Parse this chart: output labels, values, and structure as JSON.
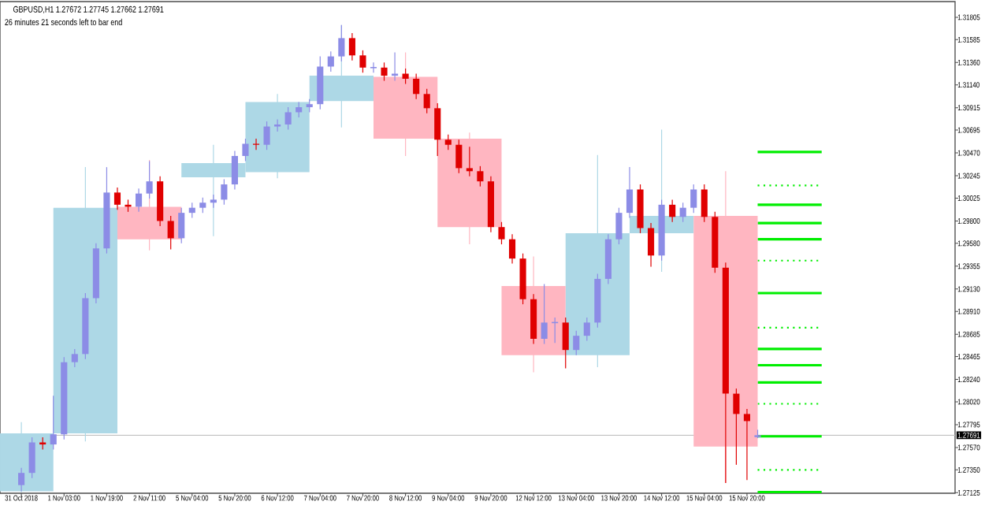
{
  "chart_data": {
    "type": "candlestick",
    "title": "GBPUSD,H1  1.27672 1.27745 1.27662 1.27691",
    "subtitle": "26 minutes 21 seconds left to bar end",
    "categories": [
      "31 Oct 2018",
      null,
      null,
      null,
      "1 Nov 03:00",
      null,
      null,
      null,
      "1 Nov 19:00",
      null,
      null,
      null,
      "2 Nov 11:00",
      null,
      null,
      null,
      "5 Nov 04:00",
      null,
      null,
      null,
      "5 Nov 20:00",
      null,
      null,
      null,
      "6 Nov 12:00",
      null,
      null,
      null,
      "7 Nov 04:00",
      null,
      null,
      null,
      "7 Nov 20:00",
      null,
      null,
      null,
      "8 Nov 12:00",
      null,
      null,
      null,
      "9 Nov 04:00",
      null,
      null,
      null,
      "9 Nov 20:00",
      null,
      null,
      null,
      "12 Nov 12:00",
      null,
      null,
      null,
      "13 Nov 04:00",
      null,
      null,
      null,
      "13 Nov 20:00",
      null,
      null,
      null,
      "14 Nov 12:00",
      null,
      null,
      null,
      "15 Nov 04:00",
      null,
      null,
      null,
      "15 Nov 20:00",
      null,
      null,
      null,
      null,
      null,
      null,
      null,
      null,
      null,
      null,
      null,
      null,
      null,
      null,
      null,
      null,
      null,
      null,
      null
    ],
    "ylim": [
      1.2712,
      1.3196
    ],
    "yticks": [
      1.31805,
      1.31585,
      {
        "value": 1.3136,
        "label": "1.31360"
      },
      {
        "value": 1.3114,
        "label": "1.31140"
      },
      1.30915,
      1.30695,
      {
        "value": 1.3047,
        "label": "1.30470"
      },
      1.30245,
      1.30025,
      {
        "value": 1.298,
        "label": "1.29800"
      },
      {
        "value": 1.2958,
        "label": "1.29580"
      },
      1.29355,
      {
        "value": 1.2913,
        "label": "1.29130"
      },
      {
        "value": 1.2891,
        "label": "1.28910"
      },
      1.28685,
      1.28465,
      {
        "value": 1.2824,
        "label": "1.28240"
      },
      {
        "value": 1.2802,
        "label": "1.28020"
      },
      1.27795,
      {
        "value": 1.2757,
        "label": "1.27570"
      },
      {
        "value": 1.2735,
        "label": "1.27350"
      },
      1.27125
    ],
    "series": [
      {
        "color": "#add8e6",
        "ohlc": [
          [
            1.2714,
            1.2782,
            1.2713,
            1.2771
          ],
          null,
          null,
          null,
          null,
          null,
          [
            1.2771,
            1.3033,
            1.2763,
            1.2993
          ],
          null,
          null,
          null,
          null,
          null,
          null,
          null,
          null,
          null,
          null,
          null,
          [
            1.3023,
            1.3055,
            1.2965,
            1.3037
          ],
          null,
          null,
          null,
          null,
          null,
          [
            1.3028,
            1.3105,
            1.3022,
            1.3097
          ],
          null,
          null,
          null,
          null,
          null,
          [
            1.3098,
            1.3173,
            1.3072,
            1.3123
          ],
          null,
          null,
          null,
          null,
          null,
          null,
          null,
          null,
          null,
          null,
          null,
          null,
          null,
          null,
          null,
          null,
          null,
          null,
          null,
          null,
          null,
          null,
          null,
          [
            1.2848,
            1.3045,
            1.2836,
            1.2968
          ],
          null,
          null,
          null,
          null,
          null,
          [
            1.2968,
            1.307,
            1.293,
            1.2985
          ],
          null,
          null,
          null,
          null,
          null,
          null,
          null,
          null,
          null,
          null,
          null,
          null,
          null,
          null,
          null,
          null,
          null,
          null,
          null,
          null,
          null,
          null,
          null,
          null,
          null,
          null,
          null
        ]
      },
      {
        "color": "#ffb6c1",
        "ohlc": [
          null,
          null,
          null,
          null,
          null,
          null,
          null,
          null,
          null,
          null,
          null,
          null,
          [
            1.2994,
            1.304,
            1.2951,
            1.2962
          ],
          null,
          null,
          null,
          null,
          null,
          null,
          null,
          null,
          null,
          null,
          null,
          null,
          null,
          null,
          null,
          null,
          null,
          null,
          null,
          null,
          null,
          null,
          null,
          [
            1.3122,
            1.3146,
            1.3044,
            1.3061
          ],
          null,
          null,
          null,
          null,
          null,
          [
            1.3061,
            1.3067,
            1.2957,
            1.2974
          ],
          null,
          null,
          null,
          null,
          null,
          [
            1.2916,
            1.2945,
            1.2831,
            1.2848
          ],
          null,
          null,
          null,
          null,
          null,
          null,
          null,
          null,
          null,
          null,
          null,
          null,
          null,
          null,
          null,
          null,
          null,
          [
            1.2985,
            1.3029,
            1.2722,
            1.2758
          ],
          null,
          null,
          null,
          null,
          null,
          null,
          null,
          null,
          null,
          null,
          null,
          null,
          null,
          null,
          null,
          null,
          null,
          null,
          null,
          null,
          null
        ]
      },
      {
        "color": "#8c8ce6",
        "ohlc": [
          [
            1.272,
            1.2737,
            1.2714,
            1.2732
          ],
          [
            1.2732,
            1.2767,
            1.2727,
            1.2762
          ],
          null,
          [
            1.276,
            1.2808,
            1.2755,
            1.277
          ],
          [
            1.277,
            1.2846,
            1.2765,
            1.2841
          ],
          [
            1.2841,
            1.2854,
            1.2836,
            1.2849
          ],
          [
            1.2849,
            1.2909,
            1.2844,
            1.2904
          ],
          [
            1.2904,
            1.2958,
            1.2899,
            1.2953
          ],
          [
            1.2953,
            1.3033,
            1.2948,
            1.3008
          ],
          null,
          null,
          [
            1.2994,
            1.3012,
            1.2989,
            1.3007
          ],
          [
            1.3007,
            1.3039,
            1.3002,
            1.3019
          ],
          null,
          null,
          [
            1.2963,
            1.2993,
            1.2958,
            1.2988
          ],
          [
            1.2988,
            1.2998,
            1.2983,
            1.2993
          ],
          [
            1.2993,
            1.3003,
            1.2988,
            1.2998
          ],
          [
            1.2998,
            1.3006,
            1.2993,
            1.3001
          ],
          [
            1.3001,
            1.3021,
            1.2996,
            1.3016
          ],
          [
            1.3016,
            1.3049,
            1.3011,
            1.3044
          ],
          [
            1.3044,
            1.3061,
            1.3039,
            1.3056
          ],
          null,
          [
            1.3055,
            1.3078,
            1.305,
            1.3073
          ],
          [
            1.3073,
            1.308,
            1.3068,
            1.3075
          ],
          [
            1.3075,
            1.3092,
            1.307,
            1.3087
          ],
          [
            1.3087,
            1.3097,
            1.3082,
            1.3092
          ],
          [
            1.3092,
            1.31,
            1.3087,
            1.3095
          ],
          [
            1.3095,
            1.3142,
            1.309,
            1.3132
          ],
          [
            1.3132,
            1.3147,
            1.3127,
            1.3142
          ],
          [
            1.3142,
            1.3173,
            1.3137,
            1.316
          ],
          null,
          null,
          [
            1.3131,
            1.3136,
            1.3126,
            1.3131
          ],
          null,
          [
            1.3123,
            1.3146,
            1.3118,
            1.3125
          ],
          null,
          null,
          null,
          null,
          null,
          null,
          null,
          null,
          null,
          null,
          null,
          null,
          null,
          [
            1.2864,
            1.2918,
            1.2859,
            1.288
          ],
          [
            1.288,
            1.2885,
            1.286,
            1.288
          ],
          null,
          [
            1.2853,
            1.2872,
            1.2848,
            1.2867
          ],
          [
            1.2867,
            1.2885,
            1.2862,
            1.288
          ],
          [
            1.288,
            1.2928,
            1.2875,
            1.2923
          ],
          [
            1.2923,
            1.2967,
            1.2918,
            1.2962
          ],
          [
            1.2962,
            1.2993,
            1.2957,
            1.2988
          ],
          [
            1.2988,
            1.3033,
            1.2983,
            1.3011
          ],
          null,
          null,
          [
            1.2946,
            1.3001,
            1.2941,
            1.2996
          ],
          null,
          [
            1.2984,
            1.2998,
            1.2979,
            1.2993
          ],
          [
            1.2993,
            1.3016,
            1.2988,
            1.3011
          ],
          null,
          null,
          null,
          null,
          null,
          [
            1.27672,
            1.27745,
            1.27662,
            1.27691
          ],
          null,
          null,
          null,
          null,
          null,
          null,
          null,
          null,
          null,
          null,
          null,
          null,
          null,
          null,
          null,
          null,
          null,
          null
        ]
      },
      {
        "color": "#e00000",
        "ohlc": [
          null,
          null,
          [
            1.2762,
            1.2767,
            1.2755,
            1.276
          ],
          null,
          null,
          null,
          null,
          null,
          null,
          [
            1.3008,
            1.3013,
            1.2991,
            1.2996
          ],
          [
            1.2996,
            1.3001,
            1.2989,
            1.2994
          ],
          null,
          null,
          [
            1.3019,
            1.3024,
            1.2975,
            1.298
          ],
          [
            1.298,
            1.2985,
            1.2952,
            1.2963
          ],
          null,
          null,
          null,
          null,
          null,
          null,
          null,
          [
            1.3056,
            1.3061,
            1.305,
            1.3055
          ],
          null,
          null,
          null,
          null,
          null,
          null,
          null,
          null,
          [
            1.316,
            1.3165,
            1.3138,
            1.3143
          ],
          [
            1.3143,
            1.3148,
            1.3126,
            1.3131
          ],
          null,
          [
            1.3131,
            1.3136,
            1.3118,
            1.3123
          ],
          null,
          [
            1.3125,
            1.313,
            1.3115,
            1.312
          ],
          [
            1.312,
            1.3125,
            1.31,
            1.3105
          ],
          [
            1.3105,
            1.311,
            1.3086,
            1.3091
          ],
          [
            1.3091,
            1.3096,
            1.3044,
            1.306
          ],
          [
            1.306,
            1.3065,
            1.305,
            1.3055
          ],
          [
            1.3055,
            1.306,
            1.3027,
            1.3032
          ],
          [
            1.3032,
            1.3053,
            1.3024,
            1.3029
          ],
          [
            1.3029,
            1.3034,
            1.3014,
            1.3019
          ],
          [
            1.3019,
            1.3024,
            1.2969,
            1.2974
          ],
          [
            1.2974,
            1.2979,
            1.2957,
            1.2962
          ],
          [
            1.2962,
            1.2967,
            1.2938,
            1.2943
          ],
          [
            1.2943,
            1.2948,
            1.2898,
            1.2903
          ],
          [
            1.2903,
            1.2908,
            1.2859,
            1.2864
          ],
          null,
          null,
          [
            1.288,
            1.2885,
            1.2835,
            1.2853
          ],
          null,
          null,
          null,
          null,
          null,
          null,
          [
            1.3011,
            1.3016,
            1.2968,
            1.2973
          ],
          [
            1.2973,
            1.2978,
            1.2935,
            1.2946
          ],
          null,
          [
            1.2996,
            1.3001,
            1.2979,
            1.2984
          ],
          null,
          null,
          [
            1.3011,
            1.3016,
            1.2979,
            1.2984
          ],
          [
            1.2984,
            1.2989,
            1.2929,
            1.2934
          ],
          [
            1.2934,
            1.2939,
            1.2722,
            1.281
          ],
          [
            1.281,
            1.2815,
            1.274,
            1.279
          ],
          [
            1.279,
            1.2795,
            1.2725,
            1.2783
          ],
          null,
          null,
          null,
          null,
          null,
          null,
          null,
          null,
          null,
          null,
          null,
          null,
          null,
          null,
          null,
          null,
          null,
          null,
          null
        ]
      },
      {
        "type": "line",
        "color": "#00ee00",
        "line_style": "solid",
        "values": [
          null,
          null,
          null,
          null,
          null,
          null,
          null,
          null,
          null,
          null,
          null,
          null,
          null,
          null,
          null,
          null,
          null,
          null,
          null,
          null,
          null,
          null,
          null,
          null,
          null,
          null,
          null,
          null,
          null,
          null,
          null,
          null,
          null,
          null,
          null,
          null,
          null,
          null,
          null,
          null,
          null,
          null,
          null,
          null,
          null,
          null,
          null,
          null,
          null,
          null,
          null,
          null,
          null,
          null,
          null,
          null,
          null,
          null,
          null,
          null,
          null,
          null,
          null,
          null,
          null,
          null,
          null,
          null,
          null,
          1.3048,
          1.3048,
          1.3048,
          1.3048,
          1.3048,
          1.3048,
          1.3048,
          null,
          null,
          null,
          null,
          null,
          null,
          null,
          null,
          null,
          null,
          null,
          null
        ]
      },
      {
        "type": "line",
        "color": "#00ee00",
        "line_style": "dotted",
        "values": [
          null,
          null,
          null,
          null,
          null,
          null,
          null,
          null,
          null,
          null,
          null,
          null,
          null,
          null,
          null,
          null,
          null,
          null,
          null,
          null,
          null,
          null,
          null,
          null,
          null,
          null,
          null,
          null,
          null,
          null,
          null,
          null,
          null,
          null,
          null,
          null,
          null,
          null,
          null,
          null,
          null,
          null,
          null,
          null,
          null,
          null,
          null,
          null,
          null,
          null,
          null,
          null,
          null,
          null,
          null,
          null,
          null,
          null,
          null,
          null,
          null,
          null,
          null,
          null,
          null,
          null,
          null,
          null,
          null,
          1.3015,
          1.3015,
          1.3015,
          1.3015,
          1.3015,
          1.3015,
          1.3015,
          null,
          null,
          null,
          null,
          null,
          null,
          null,
          null,
          null,
          null,
          null,
          null
        ]
      },
      {
        "type": "line",
        "color": "#00ee00",
        "line_style": "solid",
        "values": [
          null,
          null,
          null,
          null,
          null,
          null,
          null,
          null,
          null,
          null,
          null,
          null,
          null,
          null,
          null,
          null,
          null,
          null,
          null,
          null,
          null,
          null,
          null,
          null,
          null,
          null,
          null,
          null,
          null,
          null,
          null,
          null,
          null,
          null,
          null,
          null,
          null,
          null,
          null,
          null,
          null,
          null,
          null,
          null,
          null,
          null,
          null,
          null,
          null,
          null,
          null,
          null,
          null,
          null,
          null,
          null,
          null,
          null,
          null,
          null,
          null,
          null,
          null,
          null,
          null,
          null,
          null,
          null,
          null,
          1.2996,
          1.2996,
          1.2996,
          1.2996,
          1.2996,
          1.2996,
          1.2996,
          null,
          null,
          null,
          null,
          null,
          null,
          null,
          null,
          null,
          null,
          null,
          null
        ]
      },
      {
        "type": "line",
        "color": "#00ee00",
        "line_style": "solid",
        "values": [
          null,
          null,
          null,
          null,
          null,
          null,
          null,
          null,
          null,
          null,
          null,
          null,
          null,
          null,
          null,
          null,
          null,
          null,
          null,
          null,
          null,
          null,
          null,
          null,
          null,
          null,
          null,
          null,
          null,
          null,
          null,
          null,
          null,
          null,
          null,
          null,
          null,
          null,
          null,
          null,
          null,
          null,
          null,
          null,
          null,
          null,
          null,
          null,
          null,
          null,
          null,
          null,
          null,
          null,
          null,
          null,
          null,
          null,
          null,
          null,
          null,
          null,
          null,
          null,
          null,
          null,
          null,
          null,
          null,
          1.2978,
          1.2978,
          1.2978,
          1.2978,
          1.2978,
          1.2978,
          1.2978,
          null,
          null,
          null,
          null,
          null,
          null,
          null,
          null,
          null,
          null,
          null,
          null
        ]
      },
      {
        "type": "line",
        "color": "#00ee00",
        "line_style": "solid",
        "values": [
          null,
          null,
          null,
          null,
          null,
          null,
          null,
          null,
          null,
          null,
          null,
          null,
          null,
          null,
          null,
          null,
          null,
          null,
          null,
          null,
          null,
          null,
          null,
          null,
          null,
          null,
          null,
          null,
          null,
          null,
          null,
          null,
          null,
          null,
          null,
          null,
          null,
          null,
          null,
          null,
          null,
          null,
          null,
          null,
          null,
          null,
          null,
          null,
          null,
          null,
          null,
          null,
          null,
          null,
          null,
          null,
          null,
          null,
          null,
          null,
          null,
          null,
          null,
          null,
          null,
          null,
          null,
          null,
          null,
          1.2962,
          1.2962,
          1.2962,
          1.2962,
          1.2962,
          1.2962,
          1.2962,
          null,
          null,
          null,
          null,
          null,
          null,
          null,
          null,
          null,
          null,
          null,
          null
        ]
      },
      {
        "type": "line",
        "color": "#00ee00",
        "line_style": "dotted",
        "values": [
          null,
          null,
          null,
          null,
          null,
          null,
          null,
          null,
          null,
          null,
          null,
          null,
          null,
          null,
          null,
          null,
          null,
          null,
          null,
          null,
          null,
          null,
          null,
          null,
          null,
          null,
          null,
          null,
          null,
          null,
          null,
          null,
          null,
          null,
          null,
          null,
          null,
          null,
          null,
          null,
          null,
          null,
          null,
          null,
          null,
          null,
          null,
          null,
          null,
          null,
          null,
          null,
          null,
          null,
          null,
          null,
          null,
          null,
          null,
          null,
          null,
          null,
          null,
          null,
          null,
          null,
          null,
          null,
          null,
          1.2941,
          1.2941,
          1.2941,
          1.2941,
          1.2941,
          1.2941,
          1.2941,
          null,
          null,
          null,
          null,
          null,
          null,
          null,
          null,
          null,
          null,
          null,
          null
        ]
      },
      {
        "type": "line",
        "color": "#00ee00",
        "line_style": "solid",
        "values": [
          null,
          null,
          null,
          null,
          null,
          null,
          null,
          null,
          null,
          null,
          null,
          null,
          null,
          null,
          null,
          null,
          null,
          null,
          null,
          null,
          null,
          null,
          null,
          null,
          null,
          null,
          null,
          null,
          null,
          null,
          null,
          null,
          null,
          null,
          null,
          null,
          null,
          null,
          null,
          null,
          null,
          null,
          null,
          null,
          null,
          null,
          null,
          null,
          null,
          null,
          null,
          null,
          null,
          null,
          null,
          null,
          null,
          null,
          null,
          null,
          null,
          null,
          null,
          null,
          null,
          null,
          null,
          null,
          null,
          1.2909,
          1.2909,
          1.2909,
          1.2909,
          1.2909,
          1.2909,
          1.2909,
          null,
          null,
          null,
          null,
          null,
          null,
          null,
          null,
          null,
          null,
          null,
          null
        ]
      },
      {
        "type": "line",
        "color": "#00ee00",
        "line_style": "dotted",
        "values": [
          null,
          null,
          null,
          null,
          null,
          null,
          null,
          null,
          null,
          null,
          null,
          null,
          null,
          null,
          null,
          null,
          null,
          null,
          null,
          null,
          null,
          null,
          null,
          null,
          null,
          null,
          null,
          null,
          null,
          null,
          null,
          null,
          null,
          null,
          null,
          null,
          null,
          null,
          null,
          null,
          null,
          null,
          null,
          null,
          null,
          null,
          null,
          null,
          null,
          null,
          null,
          null,
          null,
          null,
          null,
          null,
          null,
          null,
          null,
          null,
          null,
          null,
          null,
          null,
          null,
          null,
          null,
          null,
          null,
          1.2875,
          1.2875,
          1.2875,
          1.2875,
          1.2875,
          1.2875,
          1.2875,
          null,
          null,
          null,
          null,
          null,
          null,
          null,
          null,
          null,
          null,
          null,
          null
        ]
      },
      {
        "type": "line",
        "color": "#00ee00",
        "line_style": "solid",
        "values": [
          null,
          null,
          null,
          null,
          null,
          null,
          null,
          null,
          null,
          null,
          null,
          null,
          null,
          null,
          null,
          null,
          null,
          null,
          null,
          null,
          null,
          null,
          null,
          null,
          null,
          null,
          null,
          null,
          null,
          null,
          null,
          null,
          null,
          null,
          null,
          null,
          null,
          null,
          null,
          null,
          null,
          null,
          null,
          null,
          null,
          null,
          null,
          null,
          null,
          null,
          null,
          null,
          null,
          null,
          null,
          null,
          null,
          null,
          null,
          null,
          null,
          null,
          null,
          null,
          null,
          null,
          null,
          null,
          null,
          1.2854,
          1.2854,
          1.2854,
          1.2854,
          1.2854,
          1.2854,
          1.2854,
          null,
          null,
          null,
          null,
          null,
          null,
          null,
          null,
          null,
          null,
          null,
          null
        ]
      },
      {
        "type": "line",
        "color": "#00ee00",
        "line_style": "solid",
        "values": [
          null,
          null,
          null,
          null,
          null,
          null,
          null,
          null,
          null,
          null,
          null,
          null,
          null,
          null,
          null,
          null,
          null,
          null,
          null,
          null,
          null,
          null,
          null,
          null,
          null,
          null,
          null,
          null,
          null,
          null,
          null,
          null,
          null,
          null,
          null,
          null,
          null,
          null,
          null,
          null,
          null,
          null,
          null,
          null,
          null,
          null,
          null,
          null,
          null,
          null,
          null,
          null,
          null,
          null,
          null,
          null,
          null,
          null,
          null,
          null,
          null,
          null,
          null,
          null,
          null,
          null,
          null,
          null,
          null,
          1.2838,
          1.2838,
          1.2838,
          1.2838,
          1.2838,
          1.2838,
          1.2838,
          null,
          null,
          null,
          null,
          null,
          null,
          null,
          null,
          null,
          null,
          null,
          null
        ]
      },
      {
        "type": "line",
        "color": "#00ee00",
        "line_style": "solid",
        "values": [
          null,
          null,
          null,
          null,
          null,
          null,
          null,
          null,
          null,
          null,
          null,
          null,
          null,
          null,
          null,
          null,
          null,
          null,
          null,
          null,
          null,
          null,
          null,
          null,
          null,
          null,
          null,
          null,
          null,
          null,
          null,
          null,
          null,
          null,
          null,
          null,
          null,
          null,
          null,
          null,
          null,
          null,
          null,
          null,
          null,
          null,
          null,
          null,
          null,
          null,
          null,
          null,
          null,
          null,
          null,
          null,
          null,
          null,
          null,
          null,
          null,
          null,
          null,
          null,
          null,
          null,
          null,
          null,
          null,
          1.2821,
          1.2821,
          1.2821,
          1.2821,
          1.2821,
          1.2821,
          1.2821,
          null,
          null,
          null,
          null,
          null,
          null,
          null,
          null,
          null,
          null,
          null,
          null
        ]
      },
      {
        "type": "line",
        "color": "#00ee00",
        "line_style": "dotted",
        "values": [
          null,
          null,
          null,
          null,
          null,
          null,
          null,
          null,
          null,
          null,
          null,
          null,
          null,
          null,
          null,
          null,
          null,
          null,
          null,
          null,
          null,
          null,
          null,
          null,
          null,
          null,
          null,
          null,
          null,
          null,
          null,
          null,
          null,
          null,
          null,
          null,
          null,
          null,
          null,
          null,
          null,
          null,
          null,
          null,
          null,
          null,
          null,
          null,
          null,
          null,
          null,
          null,
          null,
          null,
          null,
          null,
          null,
          null,
          null,
          null,
          null,
          null,
          null,
          null,
          null,
          null,
          null,
          null,
          null,
          1.28,
          1.28,
          1.28,
          1.28,
          1.28,
          1.28,
          1.28,
          null,
          null,
          null,
          null,
          null,
          null,
          null,
          null,
          null,
          null,
          null,
          null
        ]
      },
      {
        "type": "line",
        "color": "#00ee00",
        "line_style": "solid",
        "values": [
          null,
          null,
          null,
          null,
          null,
          null,
          null,
          null,
          null,
          null,
          null,
          null,
          null,
          null,
          null,
          null,
          null,
          null,
          null,
          null,
          null,
          null,
          null,
          null,
          null,
          null,
          null,
          null,
          null,
          null,
          null,
          null,
          null,
          null,
          null,
          null,
          null,
          null,
          null,
          null,
          null,
          null,
          null,
          null,
          null,
          null,
          null,
          null,
          null,
          null,
          null,
          null,
          null,
          null,
          null,
          null,
          null,
          null,
          null,
          null,
          null,
          null,
          null,
          null,
          null,
          null,
          null,
          null,
          null,
          1.2768,
          1.2768,
          1.2768,
          1.2768,
          1.2768,
          1.2768,
          1.2768,
          null,
          null,
          null,
          null,
          null,
          null,
          null,
          null,
          null,
          null,
          null,
          null
        ]
      },
      {
        "type": "line",
        "color": "#00ee00",
        "line_style": "dotted",
        "values": [
          null,
          null,
          null,
          null,
          null,
          null,
          null,
          null,
          null,
          null,
          null,
          null,
          null,
          null,
          null,
          null,
          null,
          null,
          null,
          null,
          null,
          null,
          null,
          null,
          null,
          null,
          null,
          null,
          null,
          null,
          null,
          null,
          null,
          null,
          null,
          null,
          null,
          null,
          null,
          null,
          null,
          null,
          null,
          null,
          null,
          null,
          null,
          null,
          null,
          null,
          null,
          null,
          null,
          null,
          null,
          null,
          null,
          null,
          null,
          null,
          null,
          null,
          null,
          null,
          null,
          null,
          null,
          null,
          null,
          1.2735,
          1.2735,
          1.2735,
          1.2735,
          1.2735,
          1.2735,
          1.2735,
          null,
          null,
          null,
          null,
          null,
          null,
          null,
          null,
          null,
          null,
          null,
          null
        ]
      },
      {
        "type": "line",
        "color": "#00ee00",
        "line_style": "solid",
        "values": [
          null,
          null,
          null,
          null,
          null,
          null,
          null,
          null,
          null,
          null,
          null,
          null,
          null,
          null,
          null,
          null,
          null,
          null,
          null,
          null,
          null,
          null,
          null,
          null,
          null,
          null,
          null,
          null,
          null,
          null,
          null,
          null,
          null,
          null,
          null,
          null,
          null,
          null,
          null,
          null,
          null,
          null,
          null,
          null,
          null,
          null,
          null,
          null,
          null,
          null,
          null,
          null,
          null,
          null,
          null,
          null,
          null,
          null,
          null,
          null,
          null,
          null,
          null,
          null,
          null,
          null,
          null,
          null,
          null,
          1.2713,
          1.2713,
          1.2713,
          1.2713,
          1.2713,
          1.2713,
          1.2713,
          null,
          null,
          null,
          null,
          null,
          null,
          null,
          null,
          null,
          null,
          null,
          null
        ]
      }
    ],
    "ref_lines": [
      {
        "axis": "y",
        "value": 1.27691,
        "label": "1.27691",
        "color": "#c0c0c0"
      }
    ]
  }
}
